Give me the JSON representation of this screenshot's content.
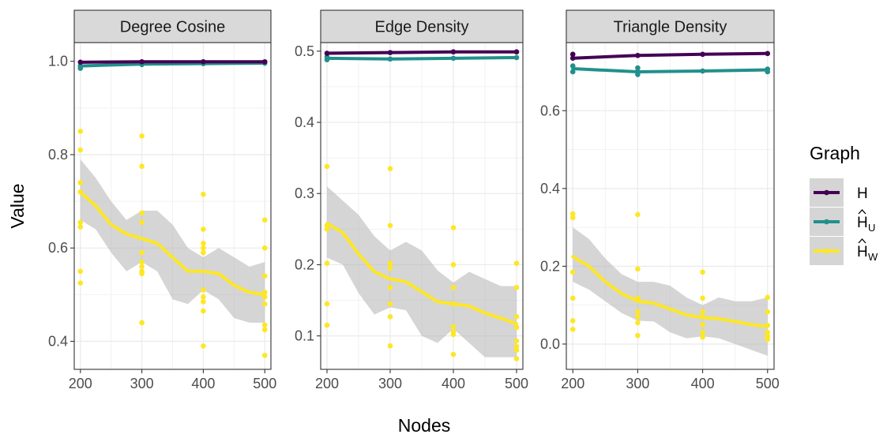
{
  "chart_data": {
    "type": "scatter",
    "xlabel": "Nodes",
    "ylabel": "Value",
    "legend": {
      "title": "Graph",
      "position": "right",
      "entries": [
        {
          "key": "H",
          "label": "H",
          "hat": false,
          "sub": ""
        },
        {
          "key": "HU",
          "label": "H",
          "hat": true,
          "sub": "U"
        },
        {
          "key": "HW",
          "label": "H",
          "hat": true,
          "sub": "W"
        }
      ]
    },
    "colors": {
      "H": "#440154",
      "HU": "#21908c",
      "HW": "#fde725",
      "band": "#b3b3b3",
      "strip": "#d9d9d9"
    },
    "panels": [
      {
        "title": "Degree Cosine",
        "xlim": [
          190,
          510
        ],
        "ylim": [
          0.34,
          1.04
        ],
        "xticks": [
          200,
          300,
          400,
          500
        ],
        "yticks": [
          0.4,
          0.6,
          0.8,
          1.0
        ],
        "ytick_labels": [
          "0.4",
          "0.6",
          "0.8",
          "1.0"
        ],
        "H": {
          "x": [
            200,
            300,
            400,
            500
          ],
          "y": [
            0.998,
            0.999,
            0.999,
            0.999
          ],
          "points": [
            [
              200,
              0.998
            ],
            [
              300,
              0.999
            ],
            [
              400,
              0.999
            ],
            [
              500,
              0.999
            ]
          ]
        },
        "HU": {
          "x": [
            200,
            300,
            400,
            500
          ],
          "y": [
            0.99,
            0.994,
            0.995,
            0.996
          ],
          "points": [
            [
              200,
              0.985
            ],
            [
              200,
              0.99
            ],
            [
              300,
              0.993
            ],
            [
              400,
              0.995
            ],
            [
              500,
              0.996
            ]
          ]
        },
        "HW": {
          "x": [
            200,
            225,
            250,
            275,
            300,
            325,
            350,
            375,
            400,
            425,
            450,
            475,
            500
          ],
          "y": [
            0.72,
            0.69,
            0.65,
            0.63,
            0.62,
            0.61,
            0.58,
            0.55,
            0.55,
            0.545,
            0.52,
            0.505,
            0.5
          ],
          "lo": [
            0.66,
            0.64,
            0.59,
            0.55,
            0.57,
            0.55,
            0.49,
            0.48,
            0.51,
            0.49,
            0.45,
            0.44,
            0.44
          ],
          "hi": [
            0.79,
            0.75,
            0.7,
            0.66,
            0.68,
            0.68,
            0.65,
            0.6,
            0.58,
            0.6,
            0.58,
            0.56,
            0.57
          ],
          "points": [
            [
              200,
              0.85
            ],
            [
              200,
              0.81
            ],
            [
              200,
              0.74
            ],
            [
              200,
              0.72
            ],
            [
              200,
              0.72
            ],
            [
              200,
              0.655
            ],
            [
              200,
              0.645
            ],
            [
              200,
              0.55
            ],
            [
              200,
              0.525
            ],
            [
              300,
              0.84
            ],
            [
              300,
              0.775
            ],
            [
              300,
              0.675
            ],
            [
              300,
              0.655
            ],
            [
              300,
              0.59
            ],
            [
              300,
              0.57
            ],
            [
              300,
              0.56
            ],
            [
              300,
              0.55
            ],
            [
              300,
              0.545
            ],
            [
              300,
              0.44
            ],
            [
              400,
              0.715
            ],
            [
              400,
              0.64
            ],
            [
              400,
              0.61
            ],
            [
              400,
              0.6
            ],
            [
              400,
              0.59
            ],
            [
              400,
              0.51
            ],
            [
              400,
              0.495
            ],
            [
              400,
              0.485
            ],
            [
              400,
              0.465
            ],
            [
              400,
              0.39
            ],
            [
              500,
              0.66
            ],
            [
              500,
              0.6
            ],
            [
              500,
              0.54
            ],
            [
              500,
              0.505
            ],
            [
              500,
              0.495
            ],
            [
              500,
              0.48
            ],
            [
              500,
              0.435
            ],
            [
              500,
              0.425
            ],
            [
              500,
              0.37
            ]
          ]
        }
      },
      {
        "title": "Edge Density",
        "xlim": [
          190,
          510
        ],
        "ylim": [
          0.053,
          0.512
        ],
        "xticks": [
          200,
          300,
          400,
          500
        ],
        "yticks": [
          0.1,
          0.2,
          0.3,
          0.4,
          0.5
        ],
        "ytick_labels": [
          "0.1",
          "0.2",
          "0.3",
          "0.4",
          "0.5"
        ],
        "H": {
          "x": [
            200,
            300,
            400,
            500
          ],
          "y": [
            0.497,
            0.498,
            0.499,
            0.499
          ],
          "points": [
            [
              200,
              0.497
            ],
            [
              300,
              0.498
            ],
            [
              400,
              0.499
            ],
            [
              500,
              0.499
            ]
          ]
        },
        "HU": {
          "x": [
            200,
            300,
            400,
            500
          ],
          "y": [
            0.49,
            0.489,
            0.49,
            0.491
          ],
          "points": [
            [
              200,
              0.488
            ],
            [
              200,
              0.492
            ],
            [
              300,
              0.489
            ],
            [
              400,
              0.49
            ],
            [
              500,
              0.491
            ]
          ]
        },
        "HW": {
          "x": [
            200,
            225,
            250,
            275,
            300,
            325,
            350,
            375,
            400,
            425,
            450,
            475,
            500
          ],
          "y": [
            0.258,
            0.245,
            0.215,
            0.19,
            0.18,
            0.176,
            0.162,
            0.148,
            0.145,
            0.142,
            0.132,
            0.125,
            0.117
          ],
          "lo": [
            0.21,
            0.2,
            0.16,
            0.13,
            0.14,
            0.136,
            0.1,
            0.09,
            0.11,
            0.09,
            0.07,
            0.07,
            0.07
          ],
          "hi": [
            0.31,
            0.29,
            0.27,
            0.24,
            0.22,
            0.232,
            0.22,
            0.192,
            0.175,
            0.19,
            0.18,
            0.17,
            0.17
          ],
          "points": [
            [
              200,
              0.338
            ],
            [
              200,
              0.255
            ],
            [
              200,
              0.25
            ],
            [
              200,
              0.202
            ],
            [
              200,
              0.145
            ],
            [
              200,
              0.115
            ],
            [
              300,
              0.335
            ],
            [
              300,
              0.255
            ],
            [
              300,
              0.202
            ],
            [
              300,
              0.195
            ],
            [
              300,
              0.168
            ],
            [
              300,
              0.145
            ],
            [
              300,
              0.127
            ],
            [
              300,
              0.086
            ],
            [
              400,
              0.252
            ],
            [
              400,
              0.2
            ],
            [
              400,
              0.168
            ],
            [
              400,
              0.145
            ],
            [
              400,
              0.113
            ],
            [
              400,
              0.106
            ],
            [
              400,
              0.102
            ],
            [
              400,
              0.074
            ],
            [
              500,
              0.202
            ],
            [
              500,
              0.168
            ],
            [
              500,
              0.127
            ],
            [
              500,
              0.112
            ],
            [
              500,
              0.093
            ],
            [
              500,
              0.085
            ],
            [
              500,
              0.08
            ],
            [
              500,
              0.068
            ]
          ]
        }
      },
      {
        "title": "Triangle Density",
        "xlim": [
          190,
          510
        ],
        "ylim": [
          -0.065,
          0.775
        ],
        "xticks": [
          200,
          300,
          400,
          500
        ],
        "yticks": [
          0.0,
          0.2,
          0.4,
          0.6
        ],
        "ytick_labels": [
          "0.0",
          "0.2",
          "0.4",
          "0.6"
        ],
        "H": {
          "x": [
            200,
            300,
            400,
            500
          ],
          "y": [
            0.735,
            0.742,
            0.745,
            0.747
          ],
          "points": [
            [
              200,
              0.735
            ],
            [
              200,
              0.745
            ],
            [
              300,
              0.742
            ],
            [
              400,
              0.745
            ],
            [
              500,
              0.747
            ]
          ]
        },
        "HU": {
          "x": [
            200,
            300,
            400,
            500
          ],
          "y": [
            0.708,
            0.7,
            0.702,
            0.705
          ],
          "points": [
            [
              200,
              0.745
            ],
            [
              200,
              0.715
            ],
            [
              200,
              0.7
            ],
            [
              300,
              0.71
            ],
            [
              300,
              0.7
            ],
            [
              300,
              0.693
            ],
            [
              400,
              0.702
            ],
            [
              500,
              0.707
            ],
            [
              500,
              0.7
            ]
          ]
        },
        "HW": {
          "x": [
            200,
            225,
            250,
            275,
            300,
            325,
            350,
            375,
            400,
            425,
            450,
            475,
            500
          ],
          "y": [
            0.225,
            0.2,
            0.16,
            0.13,
            0.11,
            0.105,
            0.09,
            0.075,
            0.068,
            0.065,
            0.058,
            0.05,
            0.045
          ],
          "lo": [
            0.16,
            0.14,
            0.11,
            0.08,
            0.06,
            0.058,
            0.03,
            0.015,
            0.02,
            0.015,
            0.0,
            -0.015,
            -0.03
          ],
          "hi": [
            0.3,
            0.27,
            0.22,
            0.18,
            0.16,
            0.16,
            0.15,
            0.12,
            0.1,
            0.12,
            0.11,
            0.11,
            0.12
          ],
          "points": [
            [
              200,
              0.335
            ],
            [
              200,
              0.325
            ],
            [
              200,
              0.185
            ],
            [
              200,
              0.118
            ],
            [
              200,
              0.06
            ],
            [
              200,
              0.038
            ],
            [
              300,
              0.333
            ],
            [
              300,
              0.193
            ],
            [
              300,
              0.118
            ],
            [
              300,
              0.083
            ],
            [
              300,
              0.07
            ],
            [
              300,
              0.055
            ],
            [
              300,
              0.022
            ],
            [
              400,
              0.185
            ],
            [
              400,
              0.118
            ],
            [
              400,
              0.083
            ],
            [
              400,
              0.07
            ],
            [
              400,
              0.05
            ],
            [
              400,
              0.03
            ],
            [
              400,
              0.018
            ],
            [
              500,
              0.12
            ],
            [
              500,
              0.083
            ],
            [
              500,
              0.048
            ],
            [
              500,
              0.03
            ],
            [
              500,
              0.02
            ],
            [
              500,
              0.012
            ]
          ]
        }
      }
    ]
  }
}
